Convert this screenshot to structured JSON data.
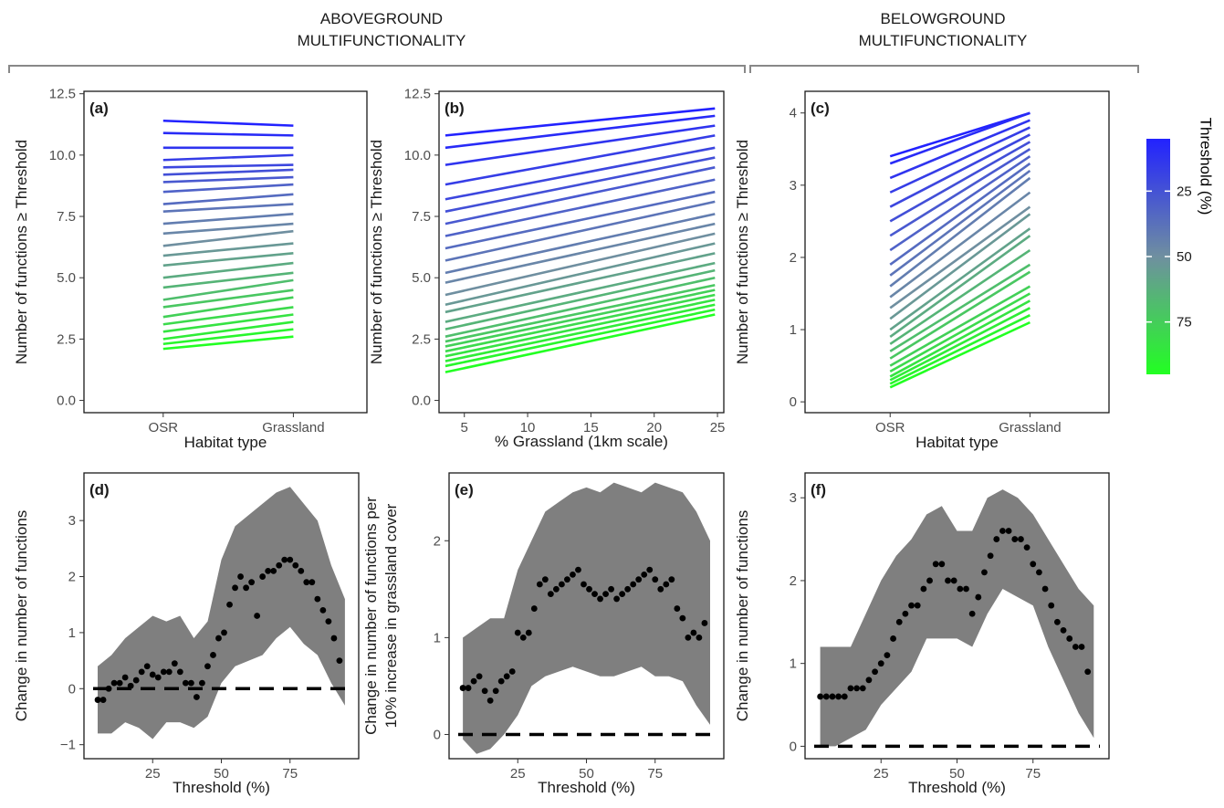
{
  "header": {
    "above_line1": "ABOVEGROUND",
    "above_line2": "MULTIFUNCTIONALITY",
    "below_line1": "BELOWGROUND",
    "below_line2": "MULTIFUNCTIONALITY"
  },
  "colors": {
    "low_threshold": "#2222ff",
    "mid_threshold": "#6f8fa0",
    "high_threshold": "#22ff22",
    "band": "#7f7f7f",
    "point": "#000000"
  },
  "legend": {
    "title": "Threshold (%)",
    "ticks": [
      "25",
      "50",
      "75"
    ],
    "placement": "right",
    "range": [
      5,
      95
    ]
  },
  "chart_data": [
    {
      "panel": "(a)",
      "type": "line",
      "xlabel": "Habitat type",
      "ylabel": "Number of functions ≥ Threshold",
      "categories": [
        "OSR",
        "Grassland"
      ],
      "ylim": [
        -0.5,
        12.6
      ],
      "yticks": [
        "0.0",
        "2.5",
        "5.0",
        "7.5",
        "10.0",
        "12.5"
      ],
      "yticks_values": [
        0,
        2.5,
        5,
        7.5,
        10,
        12.5
      ],
      "series_by_threshold": {
        "thresholds": [
          5,
          95
        ],
        "start": [
          11.4,
          10.9,
          10.3,
          9.8,
          9.5,
          9.2,
          8.9,
          8.5,
          8.0,
          7.7,
          7.2,
          6.8,
          6.3,
          5.9,
          5.5,
          5.0,
          4.6,
          4.1,
          3.8,
          3.4,
          3.1,
          2.8,
          2.5,
          2.3,
          2.1
        ],
        "end": [
          11.2,
          10.8,
          10.3,
          10.0,
          9.6,
          9.4,
          9.1,
          8.8,
          8.4,
          8.0,
          7.6,
          7.2,
          6.9,
          6.4,
          6.0,
          5.6,
          5.2,
          4.9,
          4.5,
          4.2,
          3.8,
          3.5,
          3.2,
          2.9,
          2.6
        ]
      },
      "grid": false
    },
    {
      "panel": "(b)",
      "type": "line",
      "xlabel": "% Grassland (1km scale)",
      "ylabel": "Number of functions ≥ Threshold",
      "xlim": [
        3,
        25.5
      ],
      "xticks": [
        "5",
        "10",
        "15",
        "20",
        "25"
      ],
      "xticks_values": [
        5,
        10,
        15,
        20,
        25
      ],
      "ylim": [
        -0.5,
        12.6
      ],
      "yticks": [
        "0.0",
        "2.5",
        "5.0",
        "7.5",
        "10.0",
        "12.5"
      ],
      "yticks_values": [
        0,
        2.5,
        5,
        7.5,
        10,
        12.5
      ],
      "x_range": [
        3.5,
        24.8
      ],
      "series_by_threshold": {
        "thresholds": [
          5,
          95
        ],
        "start": [
          10.8,
          10.3,
          9.6,
          8.8,
          8.2,
          7.7,
          7.2,
          6.7,
          6.2,
          5.7,
          5.2,
          4.8,
          4.3,
          3.9,
          3.6,
          3.2,
          2.9,
          2.6,
          2.4,
          2.2,
          2.0,
          1.8,
          1.6,
          1.4,
          1.15
        ],
        "end": [
          11.9,
          11.6,
          11.2,
          10.8,
          10.3,
          9.9,
          9.5,
          9.0,
          8.5,
          8.1,
          7.6,
          7.2,
          6.8,
          6.4,
          6.0,
          5.6,
          5.3,
          5.0,
          4.7,
          4.5,
          4.3,
          4.1,
          3.9,
          3.7,
          3.5
        ]
      },
      "grid": false
    },
    {
      "panel": "(c)",
      "type": "line",
      "xlabel": "Habitat type",
      "ylabel": "Number of functions ≥ Threshold",
      "categories": [
        "OSR",
        "Grassland"
      ],
      "ylim": [
        -0.15,
        4.3
      ],
      "yticks": [
        "0",
        "1",
        "2",
        "3",
        "4"
      ],
      "yticks_values": [
        0,
        1,
        2,
        3,
        4
      ],
      "series_by_threshold": {
        "thresholds": [
          5,
          95
        ],
        "start": [
          3.4,
          3.3,
          3.1,
          2.9,
          2.7,
          2.5,
          2.3,
          2.1,
          1.9,
          1.75,
          1.6,
          1.45,
          1.3,
          1.15,
          1.0,
          0.9,
          0.8,
          0.7,
          0.6,
          0.5,
          0.42,
          0.35,
          0.3,
          0.25,
          0.2
        ],
        "end": [
          4.0,
          4.0,
          3.9,
          3.8,
          3.7,
          3.6,
          3.5,
          3.4,
          3.3,
          3.2,
          3.1,
          2.9,
          2.7,
          2.6,
          2.4,
          2.3,
          2.1,
          1.9,
          1.8,
          1.6,
          1.5,
          1.4,
          1.3,
          1.2,
          1.1
        ]
      },
      "grid": false
    },
    {
      "panel": "(d)",
      "type": "scatter",
      "xlabel": "Threshold (%)",
      "ylabel": "Change in number of functions",
      "xlim": [
        0,
        100
      ],
      "xticks": [
        "25",
        "50",
        "75"
      ],
      "xticks_values": [
        25,
        50,
        75
      ],
      "ylim": [
        -1.25,
        3.85
      ],
      "yticks": [
        "−1",
        "0",
        "1",
        "2",
        "3"
      ],
      "yticks_values": [
        -1,
        0,
        1,
        2,
        3
      ],
      "reference_line": 0,
      "band_x": [
        5,
        10,
        15,
        20,
        25,
        30,
        35,
        40,
        45,
        50,
        55,
        60,
        65,
        70,
        75,
        80,
        85,
        90,
        95
      ],
      "band_upper": [
        0.4,
        0.6,
        0.9,
        1.1,
        1.3,
        1.2,
        1.3,
        0.9,
        1.2,
        2.3,
        2.9,
        3.1,
        3.3,
        3.5,
        3.6,
        3.3,
        3.0,
        2.2,
        1.6
      ],
      "band_lower": [
        -0.8,
        -0.8,
        -0.6,
        -0.7,
        -0.9,
        -0.6,
        -0.6,
        -0.7,
        -0.5,
        0.1,
        0.4,
        0.5,
        0.6,
        0.9,
        1.1,
        0.8,
        0.6,
        0.1,
        -0.3
      ],
      "points_x": [
        5,
        7,
        9,
        11,
        13,
        15,
        17,
        19,
        21,
        23,
        25,
        27,
        29,
        31,
        33,
        35,
        37,
        39,
        41,
        43,
        45,
        47,
        49,
        51,
        53,
        55,
        57,
        59,
        61,
        63,
        65,
        67,
        69,
        71,
        73,
        75,
        77,
        79,
        81,
        83,
        85,
        87,
        89,
        91,
        93
      ],
      "points_y": [
        -0.2,
        -0.2,
        0.0,
        0.1,
        0.1,
        0.2,
        0.05,
        0.15,
        0.3,
        0.4,
        0.25,
        0.2,
        0.3,
        0.3,
        0.45,
        0.3,
        0.1,
        0.1,
        -0.15,
        0.1,
        0.4,
        0.6,
        0.9,
        1.0,
        1.5,
        1.8,
        2.0,
        1.8,
        1.9,
        1.3,
        2.0,
        2.1,
        2.1,
        2.2,
        2.3,
        2.3,
        2.2,
        2.1,
        1.9,
        1.9,
        1.6,
        1.4,
        1.2,
        0.9,
        0.5
      ],
      "grid": false
    },
    {
      "panel": "(e)",
      "type": "scatter",
      "xlabel": "Threshold (%)",
      "ylabel": "Change in number of functions per\n10% increase in grassland cover",
      "xlim": [
        0,
        100
      ],
      "xticks": [
        "25",
        "50",
        "75"
      ],
      "xticks_values": [
        25,
        50,
        75
      ],
      "ylim": [
        -0.25,
        2.7
      ],
      "yticks": [
        "0",
        "1",
        "2"
      ],
      "yticks_values": [
        0,
        1,
        2
      ],
      "reference_line": 0,
      "band_x": [
        5,
        10,
        15,
        20,
        25,
        30,
        35,
        40,
        45,
        50,
        55,
        60,
        65,
        70,
        75,
        80,
        85,
        90,
        95
      ],
      "band_upper": [
        1.0,
        1.1,
        1.2,
        1.2,
        1.7,
        2.0,
        2.3,
        2.4,
        2.5,
        2.55,
        2.5,
        2.6,
        2.55,
        2.5,
        2.6,
        2.55,
        2.5,
        2.3,
        2.0
      ],
      "band_lower": [
        -0.05,
        -0.2,
        -0.15,
        0.0,
        0.2,
        0.5,
        0.6,
        0.65,
        0.7,
        0.65,
        0.6,
        0.6,
        0.65,
        0.7,
        0.6,
        0.6,
        0.55,
        0.3,
        0.1
      ],
      "points_x": [
        5,
        7,
        9,
        11,
        13,
        15,
        17,
        19,
        21,
        23,
        25,
        27,
        29,
        31,
        33,
        35,
        37,
        39,
        41,
        43,
        45,
        47,
        49,
        51,
        53,
        55,
        57,
        59,
        61,
        63,
        65,
        67,
        69,
        71,
        73,
        75,
        77,
        79,
        81,
        83,
        85,
        87,
        89,
        91,
        93
      ],
      "points_y": [
        0.48,
        0.48,
        0.55,
        0.6,
        0.45,
        0.35,
        0.45,
        0.55,
        0.6,
        0.65,
        1.05,
        1.0,
        1.05,
        1.3,
        1.55,
        1.6,
        1.45,
        1.5,
        1.55,
        1.6,
        1.65,
        1.7,
        1.55,
        1.5,
        1.45,
        1.4,
        1.45,
        1.5,
        1.4,
        1.45,
        1.5,
        1.55,
        1.6,
        1.65,
        1.7,
        1.6,
        1.5,
        1.55,
        1.6,
        1.3,
        1.2,
        1.0,
        1.05,
        1.0,
        1.15
      ],
      "grid": false
    },
    {
      "panel": "(f)",
      "type": "scatter",
      "xlabel": "Threshold (%)",
      "ylabel": "Change in number of functions",
      "xlim": [
        0,
        100
      ],
      "xticks": [
        "25",
        "50",
        "75"
      ],
      "xticks_values": [
        25,
        50,
        75
      ],
      "ylim": [
        -0.15,
        3.3
      ],
      "yticks": [
        "0",
        "1",
        "2",
        "3"
      ],
      "yticks_values": [
        0,
        1,
        2,
        3
      ],
      "reference_line": 0,
      "band_x": [
        5,
        10,
        15,
        20,
        25,
        30,
        35,
        40,
        45,
        50,
        55,
        60,
        65,
        70,
        75,
        80,
        85,
        90,
        95
      ],
      "band_upper": [
        1.2,
        1.2,
        1.2,
        1.6,
        2.0,
        2.3,
        2.5,
        2.8,
        2.9,
        2.6,
        2.6,
        3.0,
        3.1,
        3.0,
        2.8,
        2.5,
        2.2,
        1.9,
        1.7
      ],
      "band_lower": [
        0.0,
        0.0,
        0.1,
        0.2,
        0.5,
        0.7,
        0.9,
        1.3,
        1.3,
        1.3,
        1.2,
        1.6,
        1.9,
        1.8,
        1.7,
        1.2,
        0.8,
        0.4,
        0.1
      ],
      "points_x": [
        5,
        7,
        9,
        11,
        13,
        15,
        17,
        19,
        21,
        23,
        25,
        27,
        29,
        31,
        33,
        35,
        37,
        39,
        41,
        43,
        45,
        47,
        49,
        51,
        53,
        55,
        57,
        59,
        61,
        63,
        65,
        67,
        69,
        71,
        73,
        75,
        77,
        79,
        81,
        83,
        85,
        87,
        89,
        91,
        93
      ],
      "points_y": [
        0.6,
        0.6,
        0.6,
        0.6,
        0.6,
        0.7,
        0.7,
        0.7,
        0.8,
        0.9,
        1.0,
        1.1,
        1.3,
        1.5,
        1.6,
        1.7,
        1.7,
        1.9,
        2.0,
        2.2,
        2.2,
        2.0,
        2.0,
        1.9,
        1.9,
        1.6,
        1.8,
        2.1,
        2.3,
        2.5,
        2.6,
        2.6,
        2.5,
        2.5,
        2.4,
        2.2,
        2.1,
        1.9,
        1.7,
        1.5,
        1.4,
        1.3,
        1.2,
        1.2,
        0.9
      ],
      "grid": false
    }
  ]
}
